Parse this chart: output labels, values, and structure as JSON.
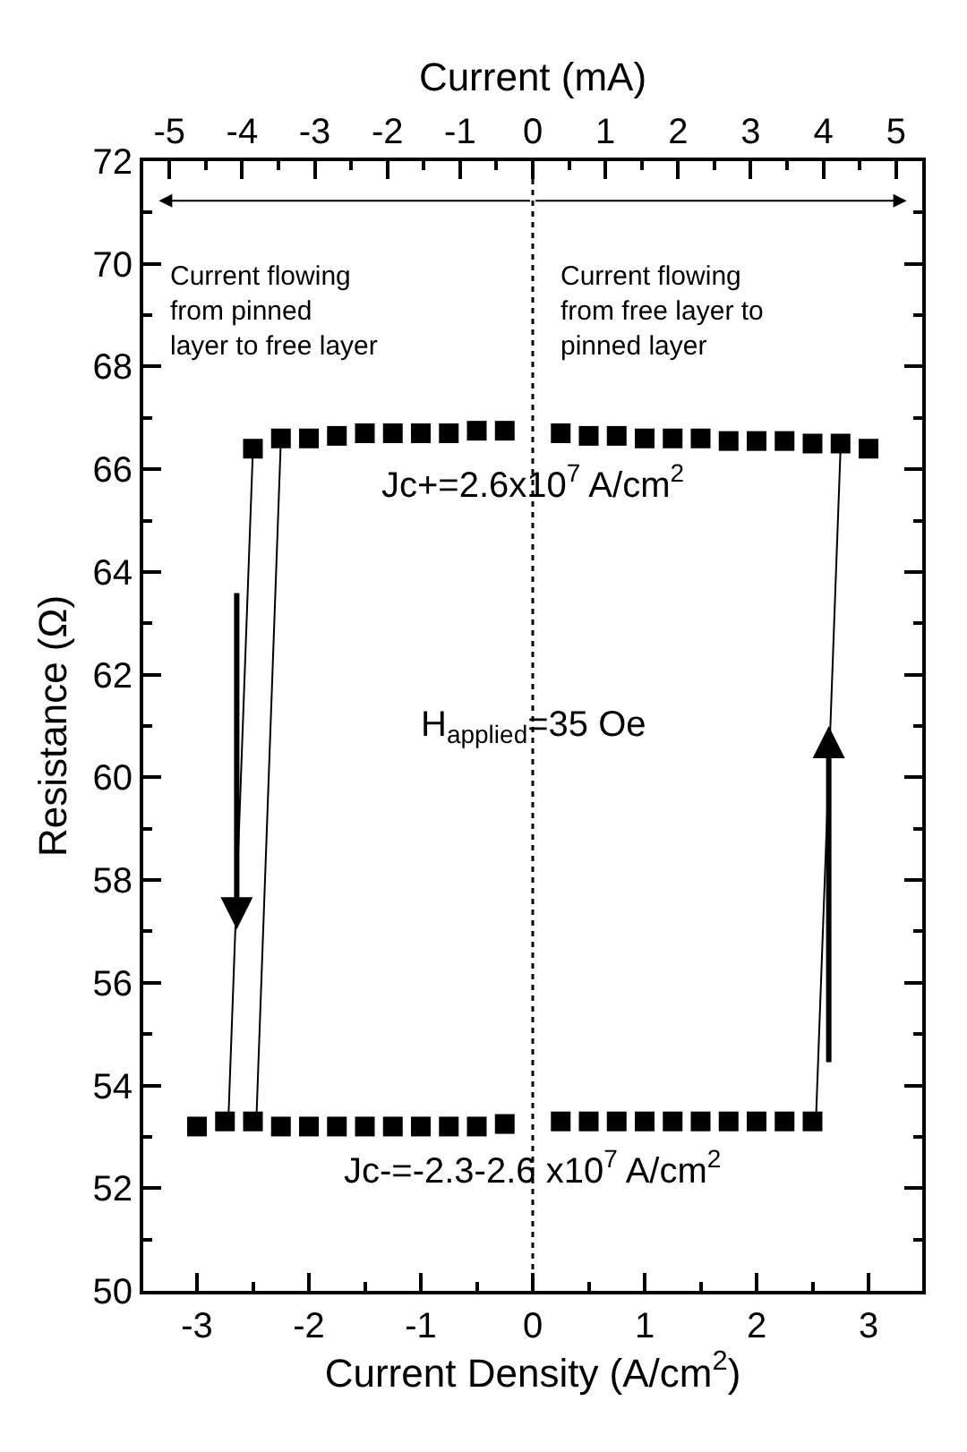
{
  "chart_data": {
    "type": "scatter",
    "xlabel": "Current Density (A/cm$^{2}$)",
    "ylabel": "Resistance (Ω)",
    "x2label": "Current (mA)",
    "xlim": [
      -3.48,
      3.48
    ],
    "xticks": [
      -3,
      -2,
      -1,
      0,
      1,
      2,
      3
    ],
    "x2lim": [
      -5.36,
      5.36
    ],
    "x2ticks": [
      -5,
      -4,
      -3,
      -2,
      -1,
      0,
      1,
      2,
      3,
      4,
      5
    ],
    "ylim": [
      50,
      72
    ],
    "yticks": [
      50,
      52,
      54,
      56,
      58,
      60,
      62,
      64,
      66,
      68,
      70,
      72
    ],
    "marker": "square",
    "series": [
      {
        "color": "#000000",
        "x": [
          -2.5,
          -2.25,
          -2.0,
          -1.75,
          -1.5,
          -1.25,
          -1.0,
          -0.75,
          -0.5,
          -0.25,
          0.25,
          0.5,
          0.75,
          1.0,
          1.25,
          1.5,
          1.75,
          2.0,
          2.25,
          2.5,
          2.75,
          3.0
        ],
        "values": [
          66.4,
          66.6,
          66.6,
          66.65,
          66.7,
          66.7,
          66.7,
          66.7,
          66.75,
          66.75,
          66.7,
          66.65,
          66.65,
          66.6,
          66.6,
          66.6,
          66.55,
          66.55,
          66.55,
          66.5,
          66.5,
          66.4
        ]
      },
      {
        "color": "#000000",
        "x": [
          -3.0,
          -2.75,
          -2.5,
          -2.25,
          -2.0,
          -1.75,
          -1.5,
          -1.25,
          -1.0,
          -0.75,
          -0.5,
          -0.25,
          0.25,
          0.5,
          0.75,
          1.0,
          1.25,
          1.5,
          1.75,
          2.0,
          2.25,
          2.5
        ],
        "values": [
          53.2,
          53.3,
          53.3,
          53.2,
          53.2,
          53.2,
          53.2,
          53.2,
          53.2,
          53.2,
          53.2,
          53.25,
          53.3,
          53.3,
          53.3,
          53.3,
          53.3,
          53.3,
          53.3,
          53.3,
          53.3,
          53.3
        ]
      },
      {
        "type": "line",
        "color": "#000000",
        "marker": "none",
        "x": [
          -2.5,
          -2.72
        ],
        "values": [
          66.4,
          53.3
        ]
      },
      {
        "type": "line",
        "color": "#000000",
        "marker": "none",
        "x": [
          -2.25,
          -2.47
        ],
        "values": [
          66.6,
          53.3
        ]
      },
      {
        "type": "line",
        "color": "#000000",
        "marker": "none",
        "x": [
          2.53,
          2.75
        ],
        "values": [
          53.3,
          66.4
        ]
      }
    ],
    "ref_lines": [
      {
        "axis": "x",
        "value": 0,
        "line_style": "dotted",
        "color": "#000000"
      }
    ],
    "annotations": [
      "Current flowing\nfrom pinned\nlayer to free layer",
      "Current flowing\nfrom free layer to\npinned layer",
      "Jc+=2.6x10$^{7}$ A/cm$^{2}$",
      "H$_{applied}$=35 Oe",
      "Jc-=-2.3-2.6 x10$^{7}$ A/cm$^{2}$"
    ]
  }
}
